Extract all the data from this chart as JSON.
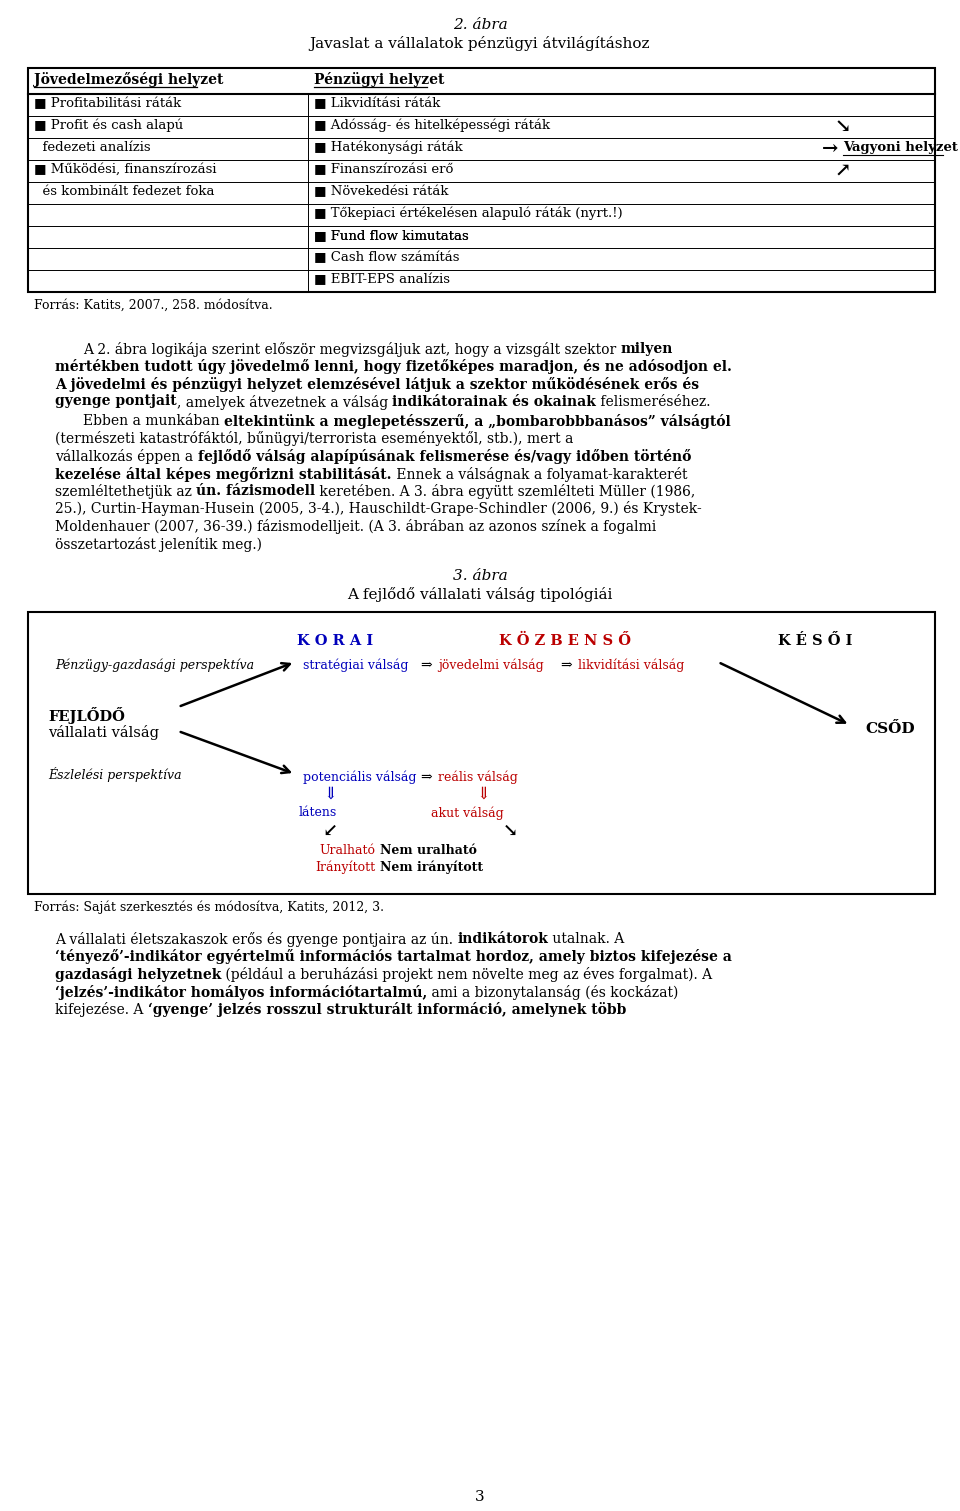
{
  "title_italic": "2. ábra",
  "title_main": "Javaslat a vállalatok pénzügyi átvilágításhoz",
  "col1_header": "Jövedelmezőségi helyzet",
  "col2_header": "Pénzügyi helyzet",
  "left_data": [
    "■ Profitabilitási ráták",
    "■ Profit és cash alapú",
    "  fedezeti analízis",
    "■ Működési, finanszírozási",
    "  és kombinált fedezet foka",
    "",
    "",
    "",
    ""
  ],
  "right_data": [
    "■ Likvidítási ráták",
    "■ Adósság- és hitelképességi ráták",
    "■ Hatékonysági ráták",
    "■ Finanszírozási erő",
    "■ Növekedési ráták",
    "■ Tőkepiaci értékelésen alapuló ráták (nyrt.!)",
    "■ Fund flow kimutatas",
    "■ Cash flow számítás",
    "■ EBIT-EPS analízis"
  ],
  "source1": "Forrás: Katits, 2007., 258. módosítva.",
  "source2": "Forrás: Saját szerkesztés és módosítva, Katits, 2012, 3.",
  "fig3_title_italic": "3. ábra",
  "fig3_title_main": "A fejlődő vállalati válság tipológiái",
  "bg_color": "#ffffff",
  "blue_color": "#0000bb",
  "red_color": "#bb0000",
  "black_color": "#000000",
  "TL": 28,
  "TR": 935,
  "TT": 68,
  "CD": 308,
  "RH": 22,
  "HH": 26,
  "P": 6
}
